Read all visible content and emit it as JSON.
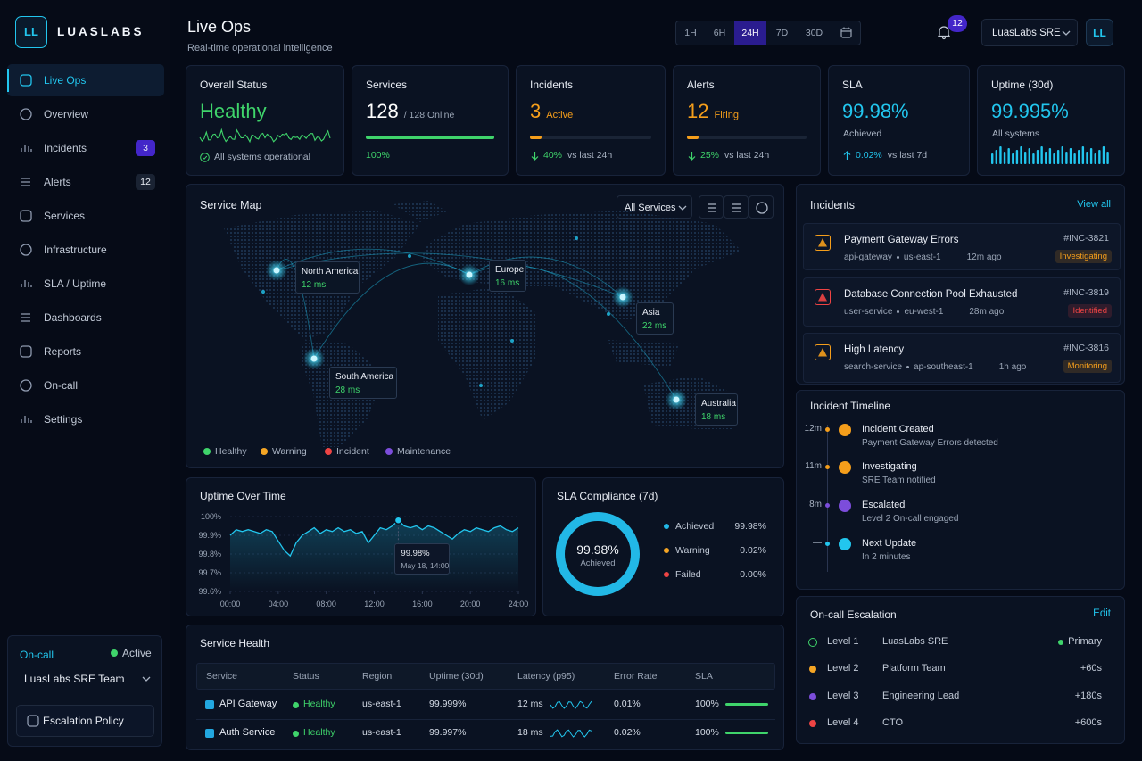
{
  "brand": {
    "logo": "LL",
    "name": "LUASLABS"
  },
  "nav": [
    {
      "label": "Live Ops",
      "active": true
    },
    {
      "label": "Overview"
    },
    {
      "label": "Incidents",
      "badge": 3,
      "badge_color": "#4326c9"
    },
    {
      "label": "Alerts",
      "badge": 12,
      "badge_color": "#1a2333"
    },
    {
      "label": "Services"
    },
    {
      "label": "Infrastructure"
    },
    {
      "label": "SLA / Uptime"
    },
    {
      "label": "Dashboards"
    },
    {
      "label": "Reports"
    },
    {
      "label": "On-call"
    },
    {
      "label": "Settings"
    }
  ],
  "oncall": {
    "label": "On-call",
    "status": "Active",
    "team": "LuasLabs SRE Team",
    "button": "Escalation Policy"
  },
  "header": {
    "title": "Live Ops",
    "subtitle": "Real-time operational intelligence",
    "ranges": [
      "1H",
      "6H",
      "24H",
      "7D",
      "30D"
    ],
    "active_range": "24H",
    "notifications": 12,
    "workspace": "LuasLabs SRE",
    "avatar": "LL"
  },
  "kpis": [
    {
      "title": "Overall Status",
      "value": "Healthy",
      "color": "#3fd46b",
      "note": "All systems operational"
    },
    {
      "title": "Services",
      "value": 128,
      "color": "#ffffff",
      "suffix": "/ 128 Online",
      "progress": {
        "value": 100,
        "label": "100%"
      }
    },
    {
      "title": "Incidents",
      "value": 3,
      "color": "#f59e1b",
      "suffix": "Active",
      "change": "40%",
      "change_note": "vs last 24h",
      "change_dir": "down"
    },
    {
      "title": "Alerts",
      "value": 12,
      "color": "#f59e1b",
      "suffix": "Firing",
      "change": "25%",
      "change_note": "vs last 24h",
      "change_dir": "down"
    },
    {
      "title": "SLA",
      "value": "99.98%",
      "color": "#22c6ee",
      "note": "Achieved",
      "change": "0.02%",
      "change_note": "vs last 7d",
      "change_dir": "up"
    },
    {
      "title": "Uptime (30d)",
      "value": "99.995%",
      "color": "#22c6ee",
      "note": "All systems"
    }
  ],
  "service_map": {
    "title": "Service Map",
    "filter": "All Services",
    "regions": [
      {
        "name": "North America",
        "latency": "12 ms"
      },
      {
        "name": "Europe",
        "latency": "16 ms"
      },
      {
        "name": "Asia",
        "latency": "22 ms"
      },
      {
        "name": "South America",
        "latency": "28 ms"
      },
      {
        "name": "Australia",
        "latency": "18 ms"
      }
    ],
    "legend": [
      {
        "name": "Healthy",
        "color": "#3fd46b"
      },
      {
        "name": "Warning",
        "color": "#f5a524"
      },
      {
        "name": "Incident",
        "color": "#ef4444"
      },
      {
        "name": "Maintenance",
        "color": "#7c4ddb"
      }
    ]
  },
  "incidents": {
    "title": "Incidents",
    "action": "View all",
    "items": [
      {
        "title": "Payment Gateway Errors",
        "service": "api-gateway",
        "region": "us-east-1",
        "time": "12m ago",
        "id": "#INC-3821",
        "status": "Investigating",
        "color": "#f59e1b"
      },
      {
        "title": "Database Connection Pool Exhausted",
        "service": "user-service",
        "region": "eu-west-1",
        "time": "28m ago",
        "id": "#INC-3819",
        "status": "Identified",
        "color": "#ef4444"
      },
      {
        "title": "High Latency",
        "service": "search-service",
        "region": "ap-southeast-1",
        "time": "1h ago",
        "id": "#INC-3816",
        "status": "Monitoring",
        "color": "#f59e1b"
      }
    ]
  },
  "timeline": {
    "title": "Incident Timeline",
    "events": [
      {
        "time": "12m",
        "title": "Incident Created",
        "detail": "Payment Gateway Errors detected",
        "color": "#f59e1b"
      },
      {
        "time": "11m",
        "title": "Investigating",
        "detail": "SRE Team notified",
        "color": "#f59e1b"
      },
      {
        "time": "8m",
        "title": "Escalated",
        "detail": "Level 2 On-call engaged",
        "color": "#7c4ddb"
      },
      {
        "time": "—",
        "title": "Next Update",
        "detail": "In 2 minutes",
        "color": "#22c6ee"
      }
    ]
  },
  "uptime": {
    "type": "line",
    "title": "Uptime Over Time",
    "color": "#22c6ee",
    "ylim": [
      99.6,
      100
    ],
    "yticks": [
      {
        "value": 100,
        "label": "100%"
      },
      {
        "value": 99.9,
        "label": "99.9%"
      },
      {
        "value": 99.8,
        "label": "99.8%"
      },
      {
        "value": 99.7,
        "label": "99.7%"
      },
      {
        "value": 99.6,
        "label": "99.6%"
      }
    ],
    "xlim": [
      0,
      24
    ],
    "xticks": [
      {
        "value": 0,
        "label": "00:00"
      },
      {
        "value": 4,
        "label": "04:00"
      },
      {
        "value": 8,
        "label": "08:00"
      },
      {
        "value": 12,
        "label": "12:00"
      },
      {
        "value": 16,
        "label": "16:00"
      },
      {
        "value": 20,
        "label": "20:00"
      },
      {
        "value": 24,
        "label": "24:00"
      }
    ],
    "values": [
      99.9,
      99.93,
      99.92,
      99.93,
      99.92,
      99.91,
      99.93,
      99.92,
      99.87,
      99.82,
      99.79,
      99.86,
      99.9,
      99.92,
      99.94,
      99.91,
      99.93,
      99.92,
      99.94,
      99.92,
      99.93,
      99.91,
      99.92,
      99.86,
      99.9,
      99.94,
      99.93,
      99.95,
      99.98,
      99.95,
      99.94,
      99.95,
      99.93,
      99.95,
      99.94,
      99.92,
      99.9,
      99.88,
      99.91,
      99.93,
      99.92,
      99.94,
      99.93,
      99.92,
      99.94,
      99.95,
      99.93,
      99.92,
      99.94
    ],
    "tooltip": {
      "x": 14,
      "value": 99.98,
      "label": "99.98%",
      "time": "May 18, 14:00"
    }
  },
  "sla": {
    "type": "donut",
    "title": "SLA Compliance (7d)",
    "center_value": "99.98%",
    "center_label": "Achieved",
    "segments": [
      {
        "name": "Achieved",
        "value": 99.98,
        "label": "99.98%",
        "color": "#22b8e6"
      },
      {
        "name": "Warning",
        "value": 0.02,
        "label": "0.02%",
        "color": "#f5a524"
      },
      {
        "name": "Failed",
        "value": 0,
        "label": "0.00%",
        "color": "#ef4444"
      }
    ]
  },
  "service_health": {
    "title": "Service Health",
    "columns": [
      "Service",
      "Status",
      "Region",
      "Uptime (30d)",
      "Latency (p95)",
      "Error Rate",
      "SLA"
    ],
    "rows": [
      [
        "API Gateway",
        "Healthy",
        "us-east-1",
        "99.999%",
        "12 ms",
        "0.01%",
        "100%"
      ],
      [
        "Auth Service",
        "Healthy",
        "us-east-1",
        "99.997%",
        "18 ms",
        "0.02%",
        "100%"
      ]
    ]
  },
  "escalation": {
    "title": "On-call Escalation",
    "action": "Edit",
    "levels": [
      {
        "level": "Level 1",
        "team": "LuasLabs SRE",
        "note": "Primary",
        "color": "#3fd46b"
      },
      {
        "level": "Level 2",
        "team": "Platform Team",
        "note": "+60s",
        "color": "#f5a524"
      },
      {
        "level": "Level 3",
        "team": "Engineering Lead",
        "note": "+180s",
        "color": "#7c4ddb"
      },
      {
        "level": "Level 4",
        "team": "CTO",
        "note": "+600s",
        "color": "#ef4444"
      }
    ]
  }
}
